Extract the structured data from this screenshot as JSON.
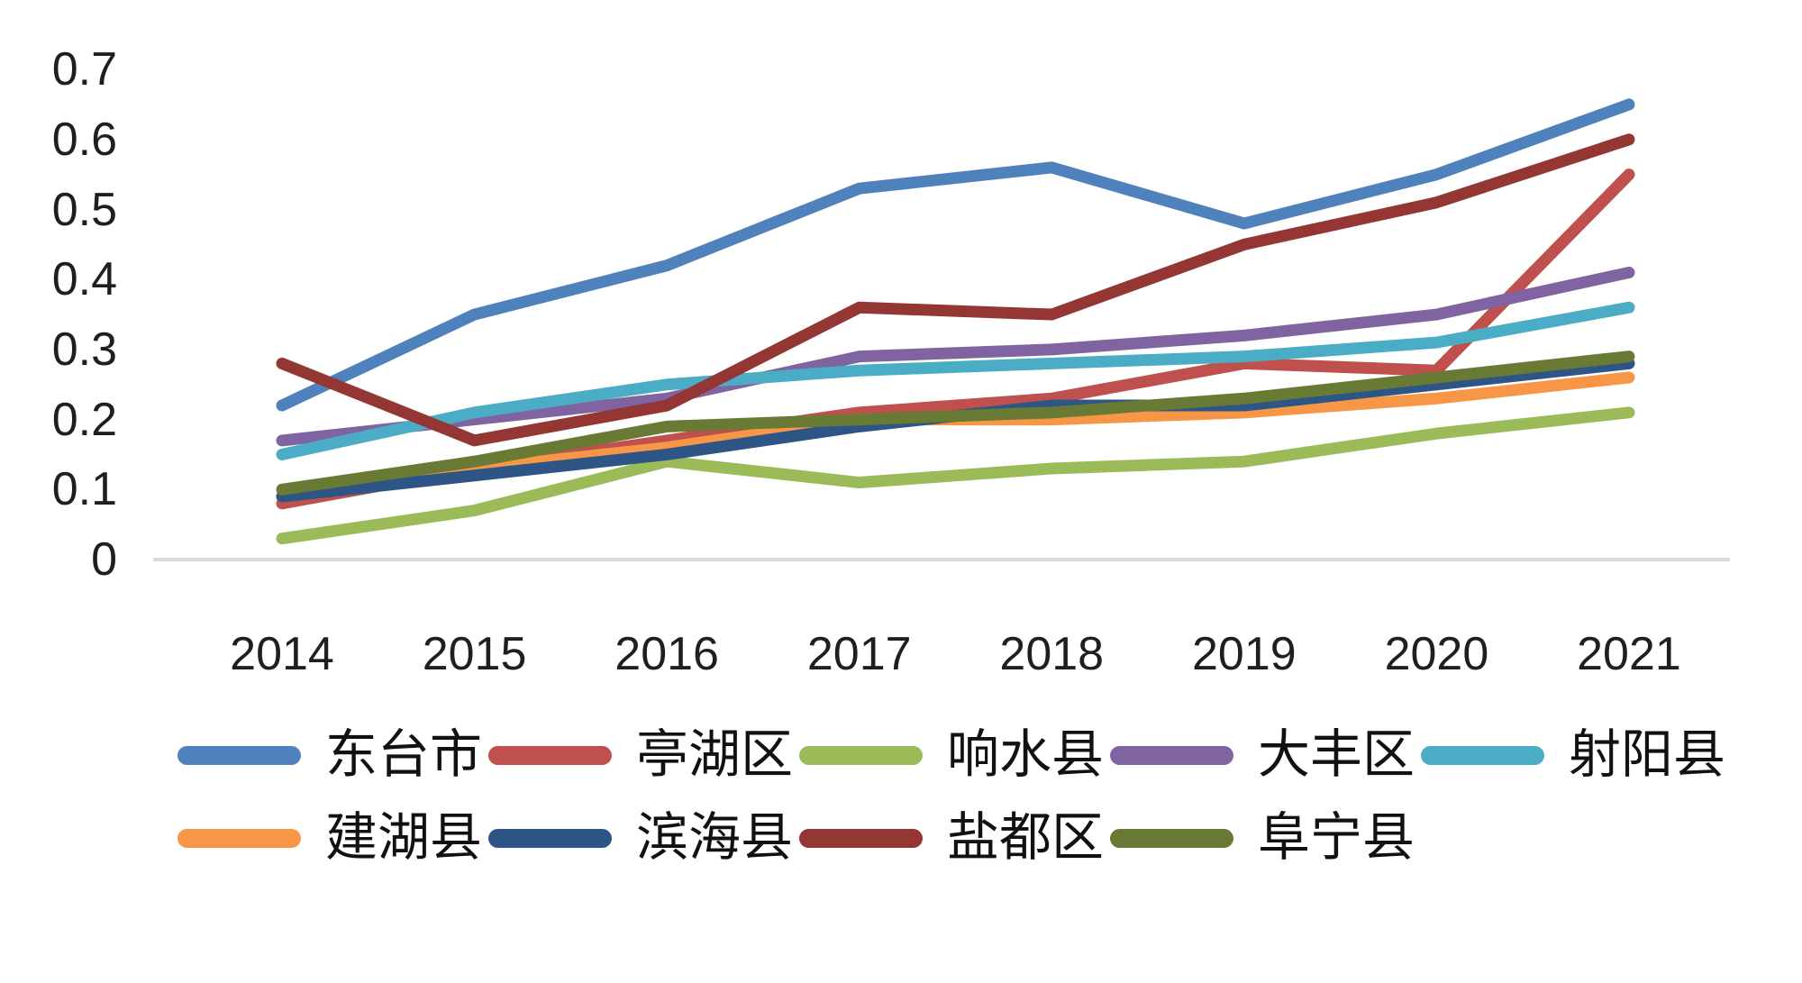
{
  "chart_data": {
    "type": "line",
    "categories": [
      "2014",
      "2015",
      "2016",
      "2017",
      "2018",
      "2019",
      "2020",
      "2021"
    ],
    "series": [
      {
        "name": "东台市",
        "color": "#4F81BD",
        "values": [
          0.22,
          0.35,
          0.42,
          0.53,
          0.56,
          0.48,
          0.55,
          0.65
        ]
      },
      {
        "name": "亭湖区",
        "color": "#C0504D",
        "values": [
          0.08,
          0.13,
          0.17,
          0.21,
          0.23,
          0.28,
          0.27,
          0.55
        ]
      },
      {
        "name": "响水县",
        "color": "#9BBB59",
        "values": [
          0.03,
          0.07,
          0.14,
          0.11,
          0.13,
          0.14,
          0.18,
          0.21
        ]
      },
      {
        "name": "大丰区",
        "color": "#8064A2",
        "values": [
          0.17,
          0.2,
          0.23,
          0.29,
          0.3,
          0.32,
          0.35,
          0.41
        ]
      },
      {
        "name": "射阳县",
        "color": "#4BACC6",
        "values": [
          0.15,
          0.21,
          0.25,
          0.27,
          0.28,
          0.29,
          0.31,
          0.36
        ]
      },
      {
        "name": "建湖县",
        "color": "#F79646",
        "values": [
          0.09,
          0.13,
          0.16,
          0.2,
          0.2,
          0.21,
          0.23,
          0.26
        ]
      },
      {
        "name": "滨海县",
        "color": "#2D5586",
        "values": [
          0.09,
          0.12,
          0.15,
          0.19,
          0.22,
          0.22,
          0.25,
          0.28
        ]
      },
      {
        "name": "盐都区",
        "color": "#943634",
        "values": [
          0.28,
          0.17,
          0.22,
          0.36,
          0.35,
          0.45,
          0.51,
          0.6
        ]
      },
      {
        "name": "阜宁县",
        "color": "#697A35",
        "values": [
          0.1,
          0.14,
          0.19,
          0.2,
          0.21,
          0.23,
          0.26,
          0.29
        ]
      }
    ],
    "y_ticks": [
      0.7,
      0.6,
      0.5,
      0.4,
      0.3,
      0.2,
      0.1,
      0
    ],
    "ylim": [
      0,
      0.7
    ],
    "xlabel": "",
    "ylabel": "",
    "title": "",
    "grid": false,
    "axis_line_color": "#D9D9D9",
    "legend_position": "bottom",
    "legend_rows": [
      5,
      4
    ]
  }
}
